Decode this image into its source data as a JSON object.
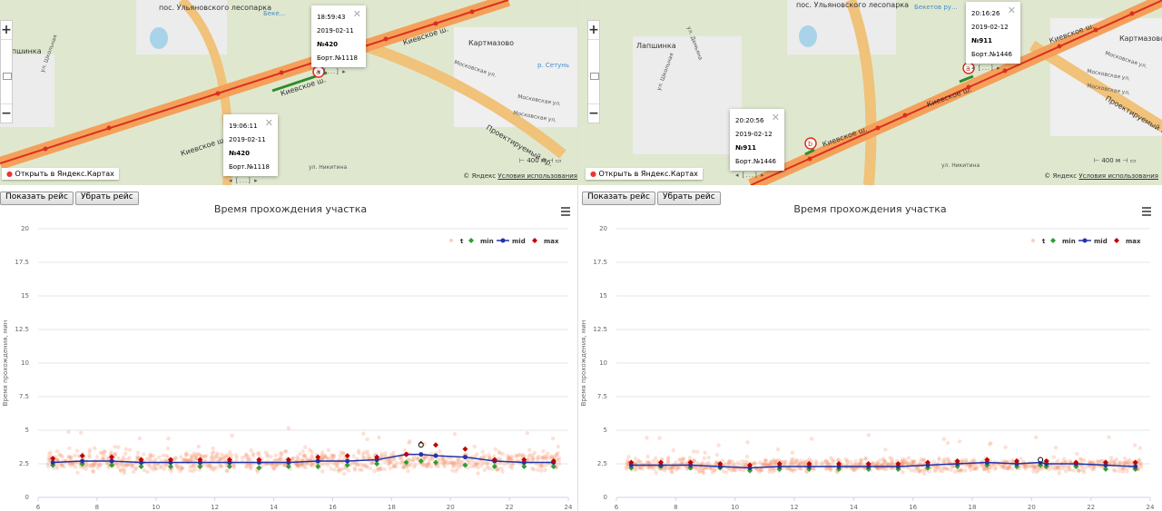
{
  "panels": [
    {
      "map": {
        "labels": {
          "park": "пос. Ульяновского\nлесопарка",
          "river": "Беке...",
          "village": "Картмазово",
          "lapshinka": "Лапшинка",
          "kiev1": "Киевское ш.",
          "kiev2": "Киевское ш.",
          "kiev3": "Киевское ш.",
          "moscow1": "Московская ул.",
          "moscow2": "Московская ул.",
          "moscow3": "Московская ул.",
          "proj": "Проектируемый пр.",
          "shkol": "ул. Школьная",
          "nikitina": "ул. Никитина",
          "setun": "р. Сетунь"
        },
        "marker_a": "a",
        "balloons": [
          {
            "time": "18:59:43",
            "date": "2019-02-11",
            "num": "№420",
            "board": "Борт.№1118",
            "pager": "◂ [...] ▸"
          },
          {
            "time": "19:06:11",
            "date": "2019-02-11",
            "num": "№420",
            "board": "Борт.№1118",
            "pager": "◂ [...] ▸"
          }
        ],
        "open_label": "Открыть в Яндекс.Картах",
        "copyright": "© Яндекс",
        "terms": "Условия использования",
        "scale": "400 м"
      },
      "buttons": {
        "show": "Показать рейс",
        "hide": "Убрать рейс"
      },
      "chart_title": "Время прохождения участка"
    },
    {
      "map": {
        "labels": {
          "park": "пос. Ульяновского\nлесопарка",
          "river": "Бекетов ру...",
          "village": "Картмазово",
          "lapshinka": "Лапшинка",
          "kiev1": "Киевское ш.",
          "kiev2": "Киевское ш.",
          "kiev3": "Киевское ш.",
          "moscow1": "Московская ул.",
          "moscow2": "Московская ул.",
          "moscow3": "Московская ул.",
          "proj": "Проектируемый пр.",
          "shkol": "ул. Школьная",
          "nikitina": "ул. Никитина",
          "setun": "ул. Демьяна"
        },
        "marker_a": "a",
        "marker_b": "b",
        "balloons": [
          {
            "time": "20:16:26",
            "date": "2019-02-12",
            "num": "№911",
            "board": "Борт.№1446",
            "pager": "◂ [...] ▸"
          },
          {
            "time": "20:20:56",
            "date": "2019-02-12",
            "num": "№911",
            "board": "Борт.№1446",
            "pager": "◂ [...] ▸"
          }
        ],
        "open_label": "Открыть в Яндекс.Картах",
        "copyright": "© Яндекс",
        "terms": "Условия использования",
        "scale": "400 м"
      },
      "buttons": {
        "show": "Показать рейс",
        "hide": "Убрать рейс"
      },
      "chart_title": "Время прохождения участка"
    }
  ],
  "chart_data": [
    {
      "type": "scatter",
      "title": "Время прохождения участка",
      "ylabel": "Время прохождения, мин",
      "xlim": [
        6,
        24
      ],
      "ylim": [
        0,
        20
      ],
      "xticks": [
        6,
        8,
        10,
        12,
        14,
        16,
        18,
        20,
        22,
        24
      ],
      "yticks": [
        0,
        2.5,
        5,
        7.5,
        10,
        12.5,
        15,
        17.5,
        20
      ],
      "ytick_labels": [
        "0",
        "2.5",
        "5",
        "7.5",
        "10",
        "12.5",
        "15",
        "17.5",
        "20"
      ],
      "legend": [
        "t",
        "min",
        "mid",
        "max"
      ],
      "legend_position": "top-right",
      "x": [
        6.5,
        7.5,
        8.5,
        9.5,
        10.5,
        11.5,
        12.5,
        13.5,
        14.5,
        15.5,
        16.5,
        17.5,
        18.5,
        19.0,
        19.5,
        20.5,
        21.5,
        22.5,
        23.5
      ],
      "series": [
        {
          "name": "min",
          "color": "#2ca02c",
          "values": [
            2.4,
            2.5,
            2.4,
            2.3,
            2.3,
            2.3,
            2.3,
            2.2,
            2.3,
            2.3,
            2.4,
            2.5,
            2.6,
            2.7,
            2.6,
            2.4,
            2.3,
            2.3,
            2.3
          ]
        },
        {
          "name": "mid",
          "color": "#2233aa",
          "values": [
            2.6,
            2.7,
            2.7,
            2.6,
            2.6,
            2.6,
            2.6,
            2.6,
            2.6,
            2.7,
            2.7,
            2.8,
            3.2,
            3.2,
            3.1,
            3.0,
            2.7,
            2.6,
            2.6
          ]
        },
        {
          "name": "max",
          "color": "#c00000",
          "values": [
            2.9,
            3.1,
            3.0,
            2.8,
            2.8,
            2.8,
            2.8,
            2.8,
            2.8,
            3.0,
            3.1,
            3.0,
            3.2,
            4.0,
            3.9,
            3.6,
            2.8,
            2.8,
            2.7
          ]
        }
      ],
      "highlight_point": {
        "x": 19.0,
        "y": 3.9
      },
      "t_cloud": {
        "color": "#f4895a",
        "y_center": 2.7,
        "spread": 0.45
      }
    },
    {
      "type": "scatter",
      "title": "Время прохождения участка",
      "ylabel": "Время прохождения, мин",
      "xlim": [
        6,
        24
      ],
      "ylim": [
        0,
        20
      ],
      "xticks": [
        6,
        8,
        10,
        12,
        14,
        16,
        18,
        20,
        22,
        24
      ],
      "yticks": [
        0,
        2.5,
        5,
        7.5,
        10,
        12.5,
        15,
        17.5,
        20
      ],
      "ytick_labels": [
        "0",
        "2.5",
        "5",
        "7.5",
        "10",
        "12.5",
        "15",
        "17.5",
        "20"
      ],
      "legend": [
        "t",
        "min",
        "mid",
        "max"
      ],
      "legend_position": "top-right",
      "x": [
        6.5,
        7.5,
        8.5,
        9.5,
        10.5,
        11.5,
        12.5,
        13.5,
        14.5,
        15.5,
        16.5,
        17.5,
        18.5,
        19.5,
        20.3,
        20.5,
        21.5,
        22.5,
        23.5
      ],
      "series": [
        {
          "name": "min",
          "color": "#2ca02c",
          "values": [
            2.2,
            2.3,
            2.2,
            2.2,
            2.0,
            2.1,
            2.1,
            2.1,
            2.1,
            2.1,
            2.2,
            2.3,
            2.4,
            2.3,
            2.4,
            2.3,
            2.3,
            2.1,
            2.1
          ]
        },
        {
          "name": "mid",
          "color": "#2233aa",
          "values": [
            2.4,
            2.4,
            2.4,
            2.3,
            2.2,
            2.3,
            2.3,
            2.3,
            2.3,
            2.3,
            2.4,
            2.5,
            2.6,
            2.5,
            2.6,
            2.5,
            2.5,
            2.4,
            2.3
          ]
        },
        {
          "name": "max",
          "color": "#c00000",
          "values": [
            2.6,
            2.6,
            2.6,
            2.5,
            2.4,
            2.5,
            2.5,
            2.5,
            2.5,
            2.5,
            2.6,
            2.7,
            2.8,
            2.7,
            2.8,
            2.7,
            2.6,
            2.6,
            2.6
          ]
        }
      ],
      "highlight_point": {
        "x": 20.3,
        "y": 2.8
      },
      "t_cloud": {
        "color": "#f4895a",
        "y_center": 2.4,
        "spread": 0.3
      }
    }
  ]
}
